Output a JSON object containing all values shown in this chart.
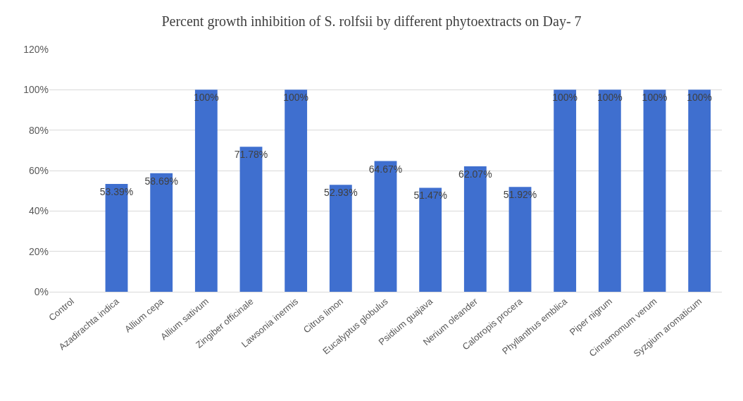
{
  "chart_data": {
    "type": "bar",
    "title": "Percent growth inhibition of S. rolfsii by different phytoextracts on Day- 7",
    "categories": [
      "Control",
      "Azadirachta indica",
      "Allium cepa",
      "Allium sativum",
      "Zingiber officinale",
      "Lawsonia inermis",
      "Citrus limon",
      "Eucalyptus globulus",
      "Psidium guajava",
      "Nerium oleander",
      "Calotropis procera",
      "Phyllanthus emblica",
      "Piper nigrum",
      "Cinnamomum verum",
      "Syzgium aromaticum"
    ],
    "values": [
      0,
      53.39,
      58.69,
      100,
      71.78,
      100,
      52.93,
      64.67,
      51.47,
      62.07,
      51.92,
      100,
      100,
      100,
      100
    ],
    "value_labels": [
      null,
      "53.39%",
      "58.69%",
      "100%",
      "71.78%",
      "100%",
      "52.93%",
      "64.67%",
      "51.47%",
      "62.07%",
      "51.92%",
      "100%",
      "100%",
      "100%",
      "100%"
    ],
    "color": "#3f6fcf",
    "ylim": [
      0,
      120
    ],
    "yticks": [
      {
        "value": 0,
        "label": "0%"
      },
      {
        "value": 20,
        "label": "20%"
      },
      {
        "value": 40,
        "label": "40%"
      },
      {
        "value": 60,
        "label": "60%"
      },
      {
        "value": 80,
        "label": "80%"
      },
      {
        "value": 100,
        "label": "100%"
      },
      {
        "value": 120,
        "label": "120%"
      }
    ],
    "grid": "y"
  }
}
